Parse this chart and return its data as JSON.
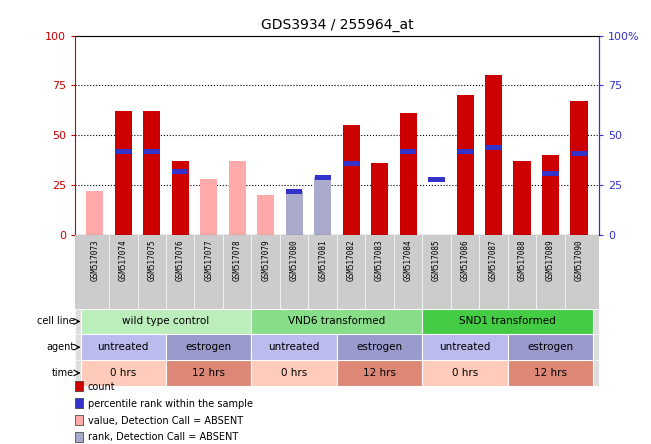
{
  "title": "GDS3934 / 255964_at",
  "samples": [
    "GSM517073",
    "GSM517074",
    "GSM517075",
    "GSM517076",
    "GSM517077",
    "GSM517078",
    "GSM517079",
    "GSM517080",
    "GSM517081",
    "GSM517082",
    "GSM517083",
    "GSM517084",
    "GSM517085",
    "GSM517086",
    "GSM517087",
    "GSM517088",
    "GSM517089",
    "GSM517090"
  ],
  "red_bars": [
    0,
    62,
    62,
    37,
    0,
    0,
    0,
    0,
    0,
    55,
    36,
    61,
    0,
    70,
    80,
    37,
    40,
    67
  ],
  "blue_bars": [
    0,
    42,
    42,
    32,
    0,
    0,
    0,
    22,
    29,
    36,
    0,
    42,
    28,
    42,
    44,
    0,
    31,
    41
  ],
  "pink_bars": [
    22,
    0,
    0,
    0,
    28,
    37,
    20,
    18,
    0,
    0,
    0,
    0,
    0,
    0,
    0,
    0,
    0,
    0
  ],
  "lightblue_bars": [
    0,
    0,
    0,
    0,
    0,
    0,
    0,
    22,
    29,
    0,
    0,
    0,
    0,
    0,
    0,
    0,
    0,
    0
  ],
  "red_color": "#cc0000",
  "blue_color": "#3333cc",
  "pink_color": "#ffaaaa",
  "lightblue_color": "#aaaacc",
  "ylim": [
    0,
    100
  ],
  "yticks": [
    0,
    25,
    50,
    75,
    100
  ],
  "grid_lines": [
    25,
    50,
    75
  ],
  "cell_line_groups": [
    {
      "label": "wild type control",
      "start": 0,
      "end": 6,
      "color": "#bbeebb"
    },
    {
      "label": "VND6 transformed",
      "start": 6,
      "end": 12,
      "color": "#88dd88"
    },
    {
      "label": "SND1 transformed",
      "start": 12,
      "end": 18,
      "color": "#44cc44"
    }
  ],
  "agent_groups": [
    {
      "label": "untreated",
      "start": 0,
      "end": 3,
      "color": "#bbbbee"
    },
    {
      "label": "estrogen",
      "start": 3,
      "end": 6,
      "color": "#9999cc"
    },
    {
      "label": "untreated",
      "start": 6,
      "end": 9,
      "color": "#bbbbee"
    },
    {
      "label": "estrogen",
      "start": 9,
      "end": 12,
      "color": "#9999cc"
    },
    {
      "label": "untreated",
      "start": 12,
      "end": 15,
      "color": "#bbbbee"
    },
    {
      "label": "estrogen",
      "start": 15,
      "end": 18,
      "color": "#9999cc"
    }
  ],
  "time_groups": [
    {
      "label": "0 hrs",
      "start": 0,
      "end": 3,
      "color": "#ffccbb"
    },
    {
      "label": "12 hrs",
      "start": 3,
      "end": 6,
      "color": "#dd8877"
    },
    {
      "label": "0 hrs",
      "start": 6,
      "end": 9,
      "color": "#ffccbb"
    },
    {
      "label": "12 hrs",
      "start": 9,
      "end": 12,
      "color": "#dd8877"
    },
    {
      "label": "0 hrs",
      "start": 12,
      "end": 15,
      "color": "#ffccbb"
    },
    {
      "label": "12 hrs",
      "start": 15,
      "end": 18,
      "color": "#dd8877"
    }
  ],
  "bar_width": 0.6,
  "background_color": "#ffffff",
  "left_axis_color": "#cc0000",
  "right_axis_color": "#3333cc",
  "legend_items": [
    {
      "color": "#cc0000",
      "label": "count"
    },
    {
      "color": "#3333cc",
      "label": "percentile rank within the sample"
    },
    {
      "color": "#ffaaaa",
      "label": "value, Detection Call = ABSENT"
    },
    {
      "color": "#aaaacc",
      "label": "rank, Detection Call = ABSENT"
    }
  ]
}
